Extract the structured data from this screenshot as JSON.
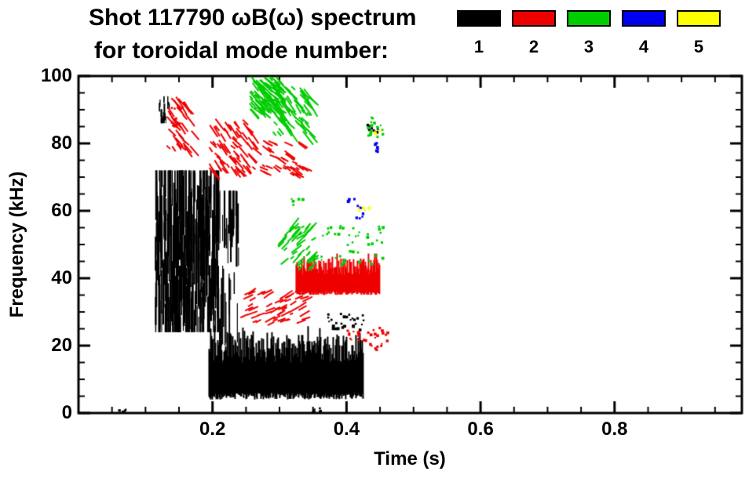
{
  "header": {
    "title_line1": "Shot 117790 ωB(ω) spectrum",
    "title_line2": "for toroidal mode number:",
    "legend": [
      {
        "label": "1",
        "color": "#000000"
      },
      {
        "label": "2",
        "color": "#ee0000"
      },
      {
        "label": "3",
        "color": "#00cc00"
      },
      {
        "label": "4",
        "color": "#0000ee"
      },
      {
        "label": "5",
        "color": "#ffff00"
      }
    ]
  },
  "chart_data": {
    "type": "scatter",
    "title": "Shot 117790 ωB(ω) spectrum for toroidal mode number: 1 2 3 4 5",
    "xlabel": "Time (s)",
    "ylabel": "Frequency (kHz)",
    "xlim": [
      0.0,
      0.99
    ],
    "ylim": [
      0,
      100
    ],
    "x_major_ticks": [
      0.2,
      0.4,
      0.6,
      0.8
    ],
    "x_tick_labels": [
      "0.2",
      "0.4",
      "0.6",
      "0.8"
    ],
    "x_minor_step": 0.05,
    "y_major_ticks": [
      0,
      20,
      40,
      60,
      80,
      100
    ],
    "y_tick_labels": [
      "0",
      "20",
      "40",
      "60",
      "80",
      "100"
    ],
    "y_minor_step": 5,
    "grid": false,
    "legend_position": "top-right",
    "series": [
      {
        "name": "n=1",
        "mode": 1,
        "color": "#000000",
        "clusters": [
          {
            "style": "vstreak",
            "t": [
              0.115,
              0.21
            ],
            "f": [
              24,
              72
            ],
            "count": 300,
            "seed": 11,
            "note": "dense chirping vertical striations 25-72 kHz"
          },
          {
            "style": "vstreak",
            "t": [
              0.12,
              0.145
            ],
            "f": [
              86,
              94
            ],
            "count": 16,
            "seed": 12,
            "note": "small high-frequency streaks ~90 kHz"
          },
          {
            "style": "vstreak",
            "t": [
              0.21,
              0.24
            ],
            "f": [
              20,
              66
            ],
            "count": 36,
            "seed": 13,
            "note": "sparse vertical lines"
          },
          {
            "style": "solid",
            "t": [
              0.195,
              0.425
            ],
            "f": [
              4,
              24
            ],
            "seed": 14,
            "note": "broad solid low-frequency band 5-25 kHz"
          },
          {
            "style": "dots",
            "t": [
              0.37,
              0.425
            ],
            "f": [
              25,
              30
            ],
            "count": 28,
            "seed": 15,
            "note": "arc above low band"
          },
          {
            "style": "dots",
            "t": [
              0.055,
              0.07
            ],
            "f": [
              0.5,
              2
            ],
            "count": 6,
            "seed": 16
          },
          {
            "style": "dots",
            "t": [
              0.345,
              0.365
            ],
            "f": [
              0.5,
              2
            ],
            "count": 6,
            "seed": 17
          },
          {
            "style": "dots",
            "t": [
              0.428,
              0.448
            ],
            "f": [
              83,
              86
            ],
            "count": 8,
            "seed": 18
          }
        ]
      },
      {
        "name": "n=2",
        "mode": 2,
        "color": "#ee0000",
        "clusters": [
          {
            "style": "streak",
            "t": [
              0.13,
              0.17
            ],
            "f": [
              79,
              95
            ],
            "count": 36,
            "seed": 21,
            "slope": -250,
            "note": "down-chirping streaks 80-95 kHz"
          },
          {
            "style": "streak",
            "t": [
              0.195,
              0.26
            ],
            "f": [
              72,
              88
            ],
            "count": 70,
            "seed": 22,
            "slope": -250,
            "note": "descending streak cluster"
          },
          {
            "style": "streak",
            "t": [
              0.27,
              0.335
            ],
            "f": [
              71,
              81
            ],
            "count": 40,
            "seed": 23,
            "slope": -120,
            "note": "descending tail to ~72 kHz"
          },
          {
            "style": "streak",
            "t": [
              0.24,
              0.335
            ],
            "f": [
              26,
              36
            ],
            "count": 60,
            "seed": 24,
            "slope": 100,
            "note": "rising band 26-36 kHz"
          },
          {
            "style": "solid",
            "t": [
              0.325,
              0.45
            ],
            "f": [
              35,
              46
            ],
            "seed": 25,
            "note": "dense jagged band near 40 kHz"
          },
          {
            "style": "dots",
            "t": [
              0.4,
              0.46
            ],
            "f": [
              19,
              26
            ],
            "count": 30,
            "seed": 26,
            "note": "sparse falling dots"
          },
          {
            "style": "dots",
            "t": [
              0.135,
              0.152
            ],
            "f": [
              85,
              92
            ],
            "count": 10,
            "seed": 27
          }
        ]
      },
      {
        "name": "n=3",
        "mode": 3,
        "color": "#00cc00",
        "clusters": [
          {
            "style": "streak",
            "t": [
              0.255,
              0.3
            ],
            "f": [
              90,
              100
            ],
            "count": 110,
            "seed": 31,
            "slope": -200,
            "note": "dense cluster at top of plot"
          },
          {
            "style": "streak",
            "t": [
              0.29,
              0.345
            ],
            "f": [
              83,
              97
            ],
            "count": 70,
            "seed": 32,
            "slope": -250,
            "note": "descending from ~100 to ~85 kHz"
          },
          {
            "style": "streak",
            "t": [
              0.295,
              0.35
            ],
            "f": [
              42,
              55
            ],
            "count": 50,
            "seed": 33,
            "slope": 180,
            "note": "rising streaks 42-55 kHz"
          },
          {
            "style": "dots",
            "t": [
              0.36,
              0.455
            ],
            "f": [
              44,
              56
            ],
            "count": 45,
            "seed": 34,
            "note": "scattered marks"
          },
          {
            "style": "dots",
            "t": [
              0.43,
              0.455
            ],
            "f": [
              82,
              88
            ],
            "count": 14,
            "seed": 35
          },
          {
            "style": "dots",
            "t": [
              0.315,
              0.335
            ],
            "f": [
              60,
              64
            ],
            "count": 6,
            "seed": 36
          }
        ]
      },
      {
        "name": "n=4",
        "mode": 4,
        "color": "#0000ee",
        "clusters": [
          {
            "style": "dots",
            "t": [
              0.41,
              0.425
            ],
            "f": [
              57,
              62
            ],
            "count": 8,
            "seed": 41
          },
          {
            "style": "dots",
            "t": [
              0.438,
              0.448
            ],
            "f": [
              77,
              82
            ],
            "count": 6,
            "seed": 42
          },
          {
            "style": "dots",
            "t": [
              0.4,
              0.41
            ],
            "f": [
              63,
              66
            ],
            "count": 4,
            "seed": 43
          }
        ]
      },
      {
        "name": "n=5",
        "mode": 5,
        "color": "#ffff00",
        "clusters": [
          {
            "style": "dots",
            "t": [
              0.415,
              0.432
            ],
            "f": [
              60,
              64
            ],
            "count": 5,
            "seed": 51
          },
          {
            "style": "dots",
            "t": [
              0.44,
              0.45
            ],
            "f": [
              83,
              85
            ],
            "count": 3,
            "seed": 52
          }
        ]
      }
    ]
  }
}
